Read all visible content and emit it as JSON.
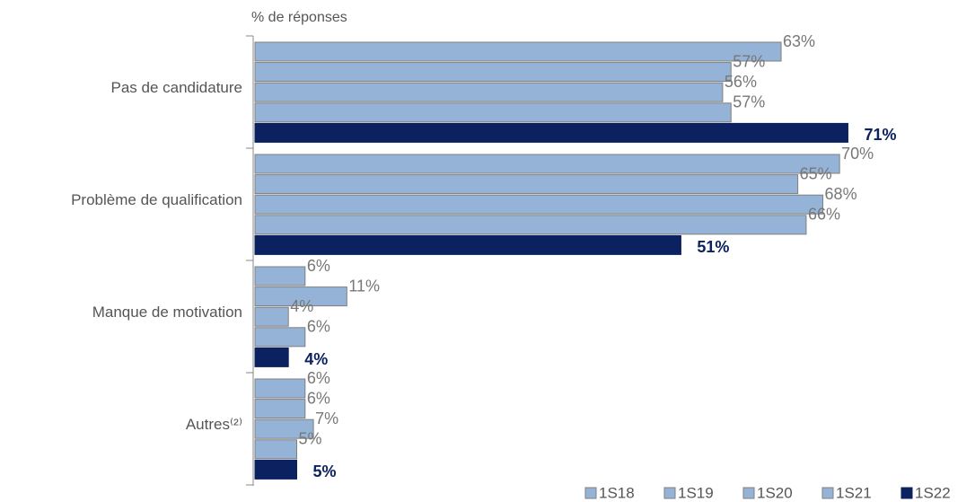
{
  "chart_data": {
    "type": "hbar",
    "xlabel": "% de réponses",
    "categories": [
      "Pas de candidature",
      "Problème de qualification",
      "Manque de motivation",
      "Autres⁽²⁾"
    ],
    "xlim": [
      0,
      86
    ],
    "series": [
      {
        "name": "1S18",
        "color": "#95b3d7",
        "values": [
          63,
          70,
          6,
          6
        ],
        "value_labels": [
          "63%",
          "70%",
          "6%",
          "6%"
        ]
      },
      {
        "name": "1S19",
        "color": "#95b3d7",
        "values": [
          57,
          65,
          11,
          6
        ],
        "value_labels": [
          "57%",
          "65%",
          "11%",
          "6%"
        ]
      },
      {
        "name": "1S20",
        "color": "#95b3d7",
        "values": [
          56,
          68,
          4,
          7
        ],
        "value_labels": [
          "56%",
          "68%",
          "4%",
          "7%"
        ]
      },
      {
        "name": "1S21",
        "color": "#95b3d7",
        "values": [
          57,
          66,
          6,
          5
        ],
        "value_labels": [
          "57%",
          "66%",
          "6%",
          "5%"
        ]
      },
      {
        "name": "1S22",
        "color": "#0b2160",
        "values": [
          71,
          51,
          4,
          5
        ],
        "value_labels": [
          "71%",
          "51%",
          "4%",
          "5%"
        ]
      }
    ]
  }
}
